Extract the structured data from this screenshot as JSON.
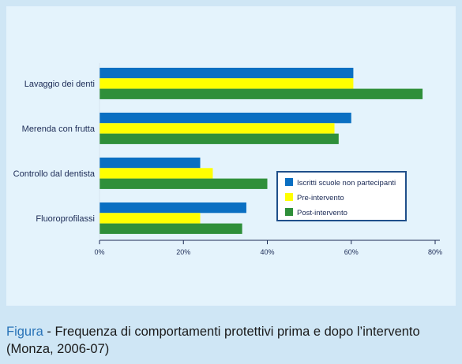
{
  "colors": {
    "background": "#cfe6f5",
    "panel": "#e4f3fc",
    "axis": "#1b2a55",
    "legend_border": "#1f4f8a",
    "caption_lead": "#2a74b8"
  },
  "caption": {
    "lead": "Figura",
    "text": " - Frequenza di comportamenti protettivi prima e dopo l’intervento (Monza, 2006-07)"
  },
  "chart_data": {
    "type": "bar",
    "orientation": "horizontal",
    "categories": [
      "Lavaggio dei denti",
      "Merenda con frutta",
      "Controllo dal dentista",
      "Fluoroprofilassi"
    ],
    "series": [
      {
        "name": "Iscritti scuole non partecipanti",
        "color": "#0a6fc2",
        "values": [
          60.5,
          60,
          24,
          35
        ]
      },
      {
        "name": "Pre-intervento",
        "color": "#ffff00",
        "values": [
          60.5,
          56,
          27,
          24
        ]
      },
      {
        "name": "Post-intervento",
        "color": "#2f8f3a",
        "values": [
          77,
          57,
          40,
          34
        ]
      }
    ],
    "x_ticks": [
      "0%",
      "20%",
      "40%",
      "60%",
      "80%"
    ],
    "xlim": [
      0,
      80
    ],
    "legend_position": "right",
    "grid": false
  }
}
